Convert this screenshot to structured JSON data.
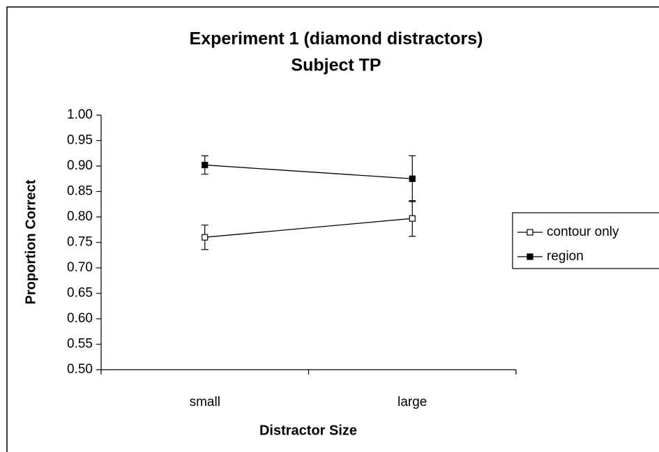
{
  "chart_data": {
    "type": "line",
    "title": [
      "Experiment 1 (diamond distractors)",
      "Subject TP"
    ],
    "x_label": "Distractor Size",
    "y_label": "Proportion Correct",
    "categories": [
      "small",
      "large"
    ],
    "series": [
      {
        "name": "contour only",
        "color": "#000000",
        "marker": "open-square",
        "values": [
          0.76,
          0.797
        ],
        "errors": [
          0.024,
          0.035
        ]
      },
      {
        "name": "region",
        "color": "#000000",
        "marker": "filled-square",
        "values": [
          0.902,
          0.875
        ],
        "errors": [
          0.018,
          0.045
        ]
      }
    ],
    "ylim": [
      0.5,
      1.0
    ],
    "yticks": [
      {
        "value": 0.5,
        "label": "0.50"
      },
      {
        "value": 0.55,
        "label": "0.55"
      },
      {
        "value": 0.6,
        "label": "0.60"
      },
      {
        "value": 0.65,
        "label": "0.65"
      },
      {
        "value": 0.7,
        "label": "0.70"
      },
      {
        "value": 0.75,
        "label": "0.75"
      },
      {
        "value": 0.8,
        "label": "0.80"
      },
      {
        "value": 0.85,
        "label": "0.85"
      },
      {
        "value": 0.9,
        "label": "0.90"
      },
      {
        "value": 0.95,
        "label": "0.95"
      },
      {
        "value": 1.0,
        "label": "1.00"
      }
    ],
    "legend": "right",
    "grid": false
  }
}
